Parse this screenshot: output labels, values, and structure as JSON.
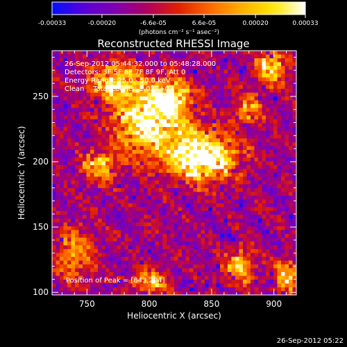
{
  "colorbar": {
    "tick_labels": [
      "-0.00033",
      "-0.00020",
      "-6.6e-05",
      "6.6e-05",
      "0.00020",
      "0.00033"
    ],
    "tick_values": [
      -0.00033,
      -0.0002,
      -6.6e-05,
      6.6e-05,
      0.0002,
      0.00033
    ],
    "range": [
      -0.00033,
      0.00033
    ],
    "unit_label": "(photons cm⁻² s⁻¹ asec⁻²)",
    "colors": [
      "#0010ff",
      "#5a00d8",
      "#8000b0",
      "#b00060",
      "#e02000",
      "#ff6a00",
      "#ffb000",
      "#ffe800",
      "#ffffff"
    ]
  },
  "chart_data": {
    "type": "heatmap",
    "title": "Reconstructed RHESSI Image",
    "xlabel": "Heliocentric X (arcsec)",
    "ylabel": "Heliocentric Y (arcsec)",
    "xlim": [
      722,
      918
    ],
    "ylim": [
      98,
      285
    ],
    "xticks": [
      750,
      800,
      850,
      900
    ],
    "yticks": [
      100,
      150,
      200,
      250
    ],
    "annotations": [
      "26-Sep-2012 05:44:32.000 to 05:48:28.000",
      "Detectors: 3F 5F 6F 7F 8F 9F, Att 0",
      "Energy Range: 25.0 - 50.0 keV",
      "Clean    Total counts: 2.02E+03"
    ],
    "peak_text": "Position of Peak = [843,204]",
    "peak": [
      843,
      204
    ],
    "bright_regions": [
      {
        "x": 843,
        "y": 204,
        "sx": 26,
        "sy": 18,
        "amp": 1.0
      },
      {
        "x": 800,
        "y": 230,
        "sx": 28,
        "sy": 24,
        "amp": 0.8
      },
      {
        "x": 772,
        "y": 262,
        "sx": 20,
        "sy": 14,
        "amp": 0.65
      },
      {
        "x": 818,
        "y": 250,
        "sx": 16,
        "sy": 12,
        "amp": 0.7
      },
      {
        "x": 760,
        "y": 196,
        "sx": 14,
        "sy": 12,
        "amp": 0.55
      },
      {
        "x": 898,
        "y": 272,
        "sx": 12,
        "sy": 12,
        "amp": 0.65
      },
      {
        "x": 880,
        "y": 240,
        "sx": 10,
        "sy": 12,
        "amp": 0.45
      },
      {
        "x": 740,
        "y": 130,
        "sx": 16,
        "sy": 20,
        "amp": 0.45
      },
      {
        "x": 800,
        "y": 108,
        "sx": 14,
        "sy": 8,
        "amp": 0.55
      },
      {
        "x": 872,
        "y": 120,
        "sx": 12,
        "sy": 14,
        "amp": 0.55
      },
      {
        "x": 910,
        "y": 112,
        "sx": 10,
        "sy": 12,
        "amp": 0.55
      }
    ]
  },
  "footer_timestamp": "26-Sep-2012 05:22"
}
